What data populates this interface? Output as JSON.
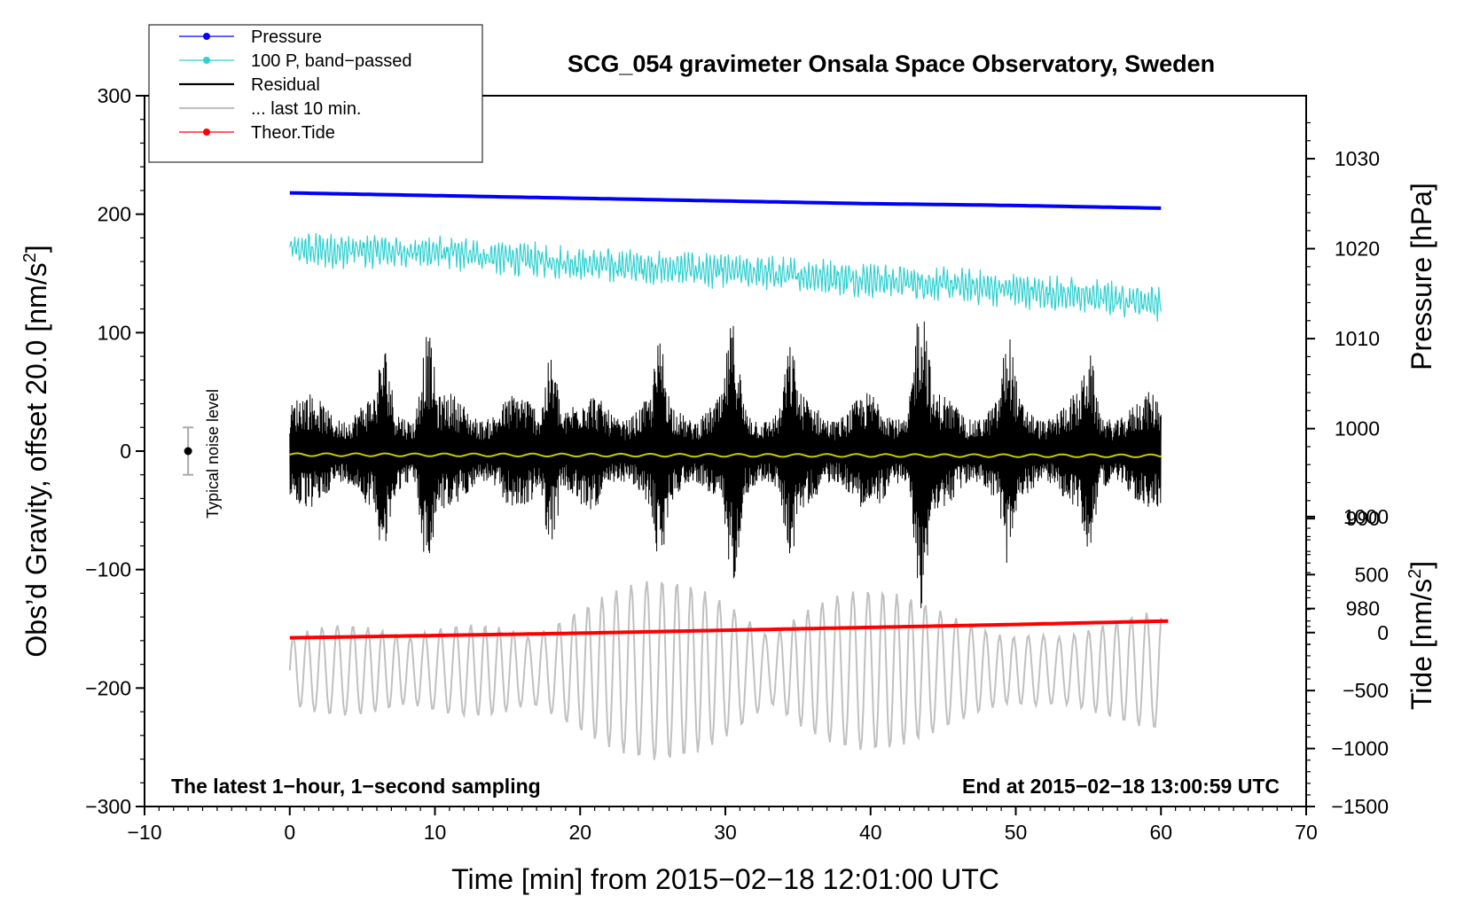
{
  "chart_data": {
    "type": "line",
    "title": "SCG_054 gravimeter Onsala Space Observatory, Sweden",
    "xlabel": "Time [min] from 2015−02−18 12:01:00 UTC",
    "ylabel_left_main": "Obs’d Gravity, offset 20.0 [nm/s",
    "ylabel_left_sup": "2",
    "ylabel_left_end": "]",
    "ylabel_right_pressure": "Pressure [hPa]",
    "ylabel_right_tide_main": "Tide [nm/s",
    "ylabel_right_tide_sup": "2",
    "ylabel_right_tide_end": "]",
    "xlim": [
      -10,
      70
    ],
    "ylim_left": [
      -300,
      300
    ],
    "ylim_pressure": [
      958,
      1037
    ],
    "ylim_tide": [
      -1500,
      4630
    ],
    "x_ticks": [
      -10,
      0,
      10,
      20,
      30,
      40,
      50,
      60,
      70
    ],
    "x_tick_labels": [
      "−10",
      "0",
      "10",
      "20",
      "30",
      "40",
      "50",
      "60",
      "70"
    ],
    "y_ticks_left": [
      -300,
      -200,
      -100,
      0,
      100,
      200,
      300
    ],
    "y_tick_labels_left": [
      "−300",
      "−200",
      "−100",
      "0",
      "100",
      "200",
      "300"
    ],
    "y_ticks_pressure": [
      980,
      990,
      1000,
      1010,
      1020,
      1030
    ],
    "y_tick_labels_pressure": [
      "980",
      "990",
      "1000",
      "1010",
      "1020",
      "1030"
    ],
    "y_ticks_tide": [
      -1500,
      -1000,
      -500,
      0,
      500,
      1000
    ],
    "y_tick_labels_tide": [
      "−1500",
      "−1000",
      "−500",
      "0",
      "500",
      "1000"
    ],
    "legend": {
      "position": "top-left",
      "entries": [
        {
          "label": "Pressure",
          "color": "#0000ff",
          "marker": true
        },
        {
          "label": "100 P, band−passed",
          "color": "#2fd0d0",
          "marker": true
        },
        {
          "label": "Residual",
          "color": "#000000",
          "marker": false
        },
        {
          "label": "... last 10 min.",
          "color": "#c0c0c0",
          "marker": false
        },
        {
          "label": "Theor.Tide",
          "color": "#ff0000",
          "marker": true
        }
      ]
    },
    "annotations": {
      "bottom_left": "The latest 1−hour, 1−second sampling",
      "bottom_right": "End at 2015−02−18 13:00:59 UTC",
      "noise_label": "Typical noise level"
    },
    "noise_bar": {
      "x": -7,
      "center": 0,
      "half_range": 20
    },
    "series": [
      {
        "name": "Pressure",
        "axis": "pressure",
        "color": "#0000ff",
        "x": [
          0,
          10,
          20,
          30,
          40,
          50,
          60
        ],
        "y": [
          1026.2,
          1025.9,
          1025.6,
          1025.3,
          1025.0,
          1024.8,
          1024.5
        ]
      },
      {
        "name": "100 P, band−passed",
        "axis": "left",
        "color": "#2fd0d0",
        "x": [
          0,
          10,
          20,
          30,
          40,
          50,
          60
        ],
        "y": [
          170,
          168,
          158,
          152,
          145,
          136,
          125
        ],
        "oscillation_amplitude": 16
      },
      {
        "name": "Residual",
        "axis": "left",
        "color": "#000000",
        "x": [
          0,
          60
        ],
        "y": [
          0,
          0
        ],
        "envelope_peaks": [
          {
            "x": 6.5,
            "amp": 90
          },
          {
            "x": 9.5,
            "amp": 100
          },
          {
            "x": 18,
            "amp": 80
          },
          {
            "x": 25.5,
            "amp": 95
          },
          {
            "x": 30.5,
            "amp": 110
          },
          {
            "x": 34.5,
            "amp": 90
          },
          {
            "x": 43.5,
            "amp": 135
          },
          {
            "x": 49.5,
            "amp": 100
          },
          {
            "x": 55,
            "amp": 85
          }
        ]
      },
      {
        "name": "Running mean",
        "axis": "left",
        "color": "#c8c800",
        "x": [
          0,
          60
        ],
        "y": [
          -3,
          -4
        ]
      },
      {
        "name": "... last 10 min.",
        "axis": "left",
        "color": "#c0c0c0",
        "x": [
          0,
          60
        ],
        "y": [
          -185,
          -185
        ],
        "range": [
          -265,
          -105
        ]
      },
      {
        "name": "Theor.Tide",
        "axis": "tide",
        "color": "#ff0000",
        "x": [
          0,
          10,
          20,
          30,
          40,
          50,
          60.5
        ],
        "y": [
          -45,
          -25,
          -5,
          20,
          45,
          70,
          100
        ]
      }
    ]
  }
}
